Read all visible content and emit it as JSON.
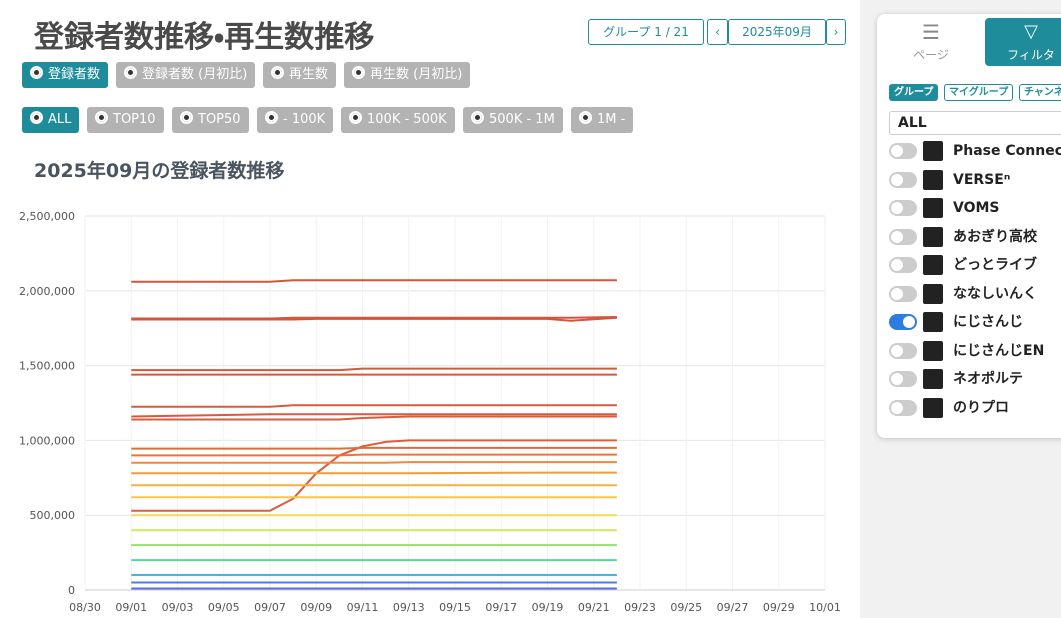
{
  "header": {
    "title": "登録者数推移・再生数推移",
    "group_nav": "グループ 1 / 21",
    "month": "2025年09月"
  },
  "metric_options": {
    "items": [
      "登録者数",
      "登録者数 (月初比)",
      "再生数",
      "再生数 (月初比)"
    ],
    "selected": 0
  },
  "range_options": {
    "items": [
      "ALL",
      "TOP10",
      "TOP50",
      "- 100K",
      "100K - 500K",
      "500K - 1M",
      "1M -"
    ],
    "selected": 0
  },
  "sidebar": {
    "tabs": [
      "ページ",
      "フィルタ"
    ],
    "tags": [
      "グループ",
      "マイグループ",
      "チャンネ"
    ],
    "select": "ALL",
    "groups": [
      {
        "label": "Phase Connect",
        "on": false
      },
      {
        "label": "VERSEⁿ",
        "on": false
      },
      {
        "label": "VOMS",
        "on": false
      },
      {
        "label": "あおぎり高校",
        "on": false
      },
      {
        "label": "どっとライブ",
        "on": false
      },
      {
        "label": "ななしいんく",
        "on": false
      },
      {
        "label": "にじさんじ",
        "on": true
      },
      {
        "label": "にじさんじEN",
        "on": false
      },
      {
        "label": "ネオポルテ",
        "on": false
      },
      {
        "label": "のりプロ",
        "on": false
      }
    ]
  },
  "chart_data": {
    "type": "line",
    "title": "2025年09月の登録者数推移",
    "x": [
      "09/01",
      "09/07",
      "09/08",
      "09/09",
      "09/10",
      "09/11",
      "09/12",
      "09/13",
      "09/19",
      "09/20",
      "09/22"
    ],
    "xlim": [
      "08/30",
      "10/01"
    ],
    "xticks": [
      "08/30",
      "09/01",
      "09/03",
      "09/05",
      "09/07",
      "09/09",
      "09/11",
      "09/13",
      "09/15",
      "09/17",
      "09/19",
      "09/21",
      "09/23",
      "09/25",
      "09/27",
      "09/29",
      "10/01"
    ],
    "ylim": [
      0,
      2500000
    ],
    "yticks": [
      0,
      {
        "value": 500000,
        "label": "500,000"
      },
      {
        "value": 1000000,
        "label": "1,000,000"
      },
      {
        "value": 1500000,
        "label": "1,500,000"
      },
      {
        "value": 2000000,
        "label": "2,000,000"
      },
      {
        "value": 2500000,
        "label": "2,500,000"
      }
    ],
    "grid": true,
    "series": [
      {
        "color": "#d4553a",
        "values": [
          2060000,
          2060000,
          2070000,
          2070000,
          2070000,
          2070000,
          2070000,
          2070000,
          2070000,
          2070000,
          2070000
        ]
      },
      {
        "color": "#d4553a",
        "values": [
          1815000,
          1815000,
          1820000,
          1820000,
          1820000,
          1820000,
          1820000,
          1820000,
          1820000,
          1820000,
          1825000
        ]
      },
      {
        "color": "#d4553a",
        "values": [
          1808000,
          1808000,
          1808000,
          1812000,
          1812000,
          1812000,
          1812000,
          1812000,
          1812000,
          1800000,
          1820000
        ]
      },
      {
        "color": "#d6583a",
        "values": [
          1470000,
          1470000,
          1470000,
          1470000,
          1470000,
          1480000,
          1480000,
          1480000,
          1480000,
          1480000,
          1480000
        ]
      },
      {
        "color": "#d6583a",
        "values": [
          1440000,
          1440000,
          1440000,
          1440000,
          1440000,
          1440000,
          1440000,
          1440000,
          1440000,
          1440000,
          1440000
        ]
      },
      {
        "color": "#d85a3a",
        "values": [
          1225000,
          1225000,
          1235000,
          1235000,
          1235000,
          1235000,
          1235000,
          1235000,
          1235000,
          1235000,
          1235000
        ]
      },
      {
        "color": "#d85a3a",
        "values": [
          1160000,
          1175000,
          1175000,
          1175000,
          1175000,
          1175000,
          1175000,
          1175000,
          1175000,
          1175000,
          1175000
        ]
      },
      {
        "color": "#da5c3a",
        "values": [
          1140000,
          1140000,
          1140000,
          1140000,
          1140000,
          1150000,
          1155000,
          1160000,
          1160000,
          1160000,
          1160000
        ]
      },
      {
        "color": "#db5e3a",
        "values": [
          530000,
          530000,
          610000,
          780000,
          900000,
          960000,
          990000,
          1000000,
          1000000,
          1000000,
          1000000
        ]
      },
      {
        "color": "#e36a3a",
        "values": [
          945000,
          945000,
          945000,
          945000,
          945000,
          950000,
          950000,
          950000,
          950000,
          950000,
          950000
        ]
      },
      {
        "color": "#e8763a",
        "values": [
          900000,
          900000,
          900000,
          900000,
          900000,
          905000,
          905000,
          905000,
          905000,
          905000,
          905000
        ]
      },
      {
        "color": "#ee883c",
        "values": [
          850000,
          850000,
          850000,
          850000,
          850000,
          850000,
          850000,
          855000,
          855000,
          855000,
          855000
        ]
      },
      {
        "color": "#f29a3e",
        "values": [
          780000,
          780000,
          780000,
          780000,
          780000,
          780000,
          780000,
          780000,
          785000,
          785000,
          785000
        ]
      },
      {
        "color": "#f5b043",
        "values": [
          700000,
          700000,
          700000,
          700000,
          700000,
          700000,
          700000,
          700000,
          700000,
          700000,
          700000
        ]
      },
      {
        "color": "#f7c64a",
        "values": [
          620000,
          620000,
          620000,
          620000,
          620000,
          620000,
          620000,
          620000,
          620000,
          620000,
          620000
        ]
      },
      {
        "color": "#f3dc50",
        "values": [
          500000,
          500000,
          500000,
          500000,
          500000,
          500000,
          500000,
          500000,
          500000,
          500000,
          500000
        ]
      },
      {
        "color": "#d2e85a",
        "values": [
          400000,
          400000,
          400000,
          400000,
          400000,
          400000,
          400000,
          400000,
          400000,
          400000,
          400000
        ]
      },
      {
        "color": "#92e070",
        "values": [
          300000,
          300000,
          300000,
          300000,
          300000,
          300000,
          300000,
          300000,
          300000,
          300000,
          300000
        ]
      },
      {
        "color": "#52d8a0",
        "values": [
          200000,
          200000,
          200000,
          200000,
          200000,
          200000,
          200000,
          200000,
          200000,
          200000,
          200000
        ]
      },
      {
        "color": "#40b8e0",
        "values": [
          100000,
          100000,
          100000,
          100000,
          100000,
          100000,
          100000,
          100000,
          100000,
          100000,
          100000
        ]
      },
      {
        "color": "#4a7ef0",
        "values": [
          50000,
          50000,
          50000,
          50000,
          50000,
          50000,
          50000,
          50000,
          50000,
          50000,
          50000
        ]
      },
      {
        "color": "#5a6ee8",
        "values": [
          10000,
          10000,
          10000,
          10000,
          10000,
          10000,
          10000,
          10000,
          10000,
          10000,
          10000
        ]
      }
    ]
  }
}
